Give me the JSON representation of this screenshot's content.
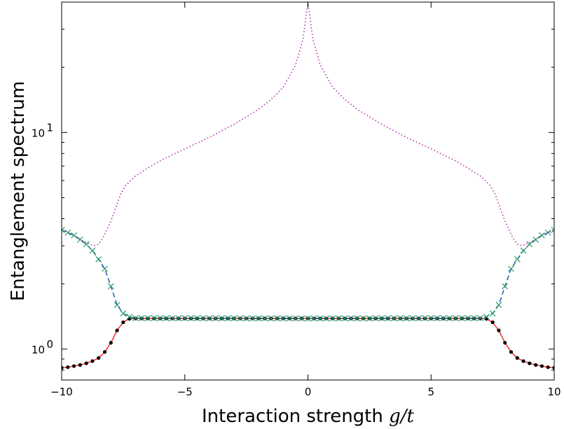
{
  "chart_data": {
    "type": "line",
    "title": "",
    "xlabel_text": "Interaction strength",
    "xlabel_var": "g/t",
    "ylabel": "Entanglement spectrum",
    "xlim": [
      -10,
      10
    ],
    "ylim": [
      0.72,
      40
    ],
    "yscale": "log",
    "grid": false,
    "legend": "none",
    "x_ticks": [
      -10,
      -5,
      0,
      5,
      10
    ],
    "x_tick_labels": [
      "−10",
      "−5",
      "0",
      "5",
      "10"
    ],
    "y_major_ticks": [
      1,
      10
    ],
    "y_major_labels": [
      {
        "base": "10",
        "exp": "0"
      },
      {
        "base": "10",
        "exp": "1"
      }
    ],
    "y_minor_ticks": [
      0.8,
      0.9,
      2,
      3,
      4,
      5,
      6,
      7,
      8,
      9,
      20,
      30
    ],
    "series": [
      {
        "style": "solid",
        "color": "#ff2a2a",
        "marker": "dot",
        "marker_color": "#000000",
        "x": [
          -10,
          -9.75,
          -9.5,
          -9.25,
          -9,
          -8.75,
          -8.5,
          -8.25,
          -8,
          -7.75,
          -7.5,
          -7.25,
          -7,
          0,
          7,
          7.25,
          7.5,
          7.75,
          8,
          8.25,
          8.5,
          8.75,
          9,
          9.25,
          9.5,
          9.75,
          10
        ],
        "y": [
          0.82,
          0.825,
          0.835,
          0.845,
          0.86,
          0.88,
          0.91,
          0.97,
          1.07,
          1.22,
          1.33,
          1.38,
          1.385,
          1.385,
          1.385,
          1.38,
          1.33,
          1.22,
          1.07,
          0.97,
          0.91,
          0.88,
          0.86,
          0.845,
          0.835,
          0.825,
          0.82
        ]
      },
      {
        "style": "dashed",
        "color": "#1f5fa8",
        "marker": "x",
        "marker_color": "#2a9a6a",
        "x": [
          -10,
          -9.75,
          -9.5,
          -9.25,
          -9,
          -8.75,
          -8.5,
          -8.25,
          -8,
          -7.75,
          -7.5,
          -7.25,
          -7,
          0,
          7,
          7.25,
          7.5,
          7.75,
          8,
          8.25,
          8.5,
          8.75,
          9,
          9.25,
          9.5,
          9.75,
          10
        ],
        "y": [
          3.55,
          3.45,
          3.35,
          3.2,
          3.05,
          2.85,
          2.6,
          2.35,
          1.95,
          1.6,
          1.46,
          1.41,
          1.39,
          1.385,
          1.39,
          1.41,
          1.46,
          1.6,
          1.95,
          2.35,
          2.6,
          2.85,
          3.05,
          3.2,
          3.35,
          3.45,
          3.55
        ]
      },
      {
        "style": "dotted",
        "color": "#b02fb0",
        "marker": "none",
        "x": [
          -10,
          -9.5,
          -9,
          -8.7,
          -8.5,
          -8.3,
          -8,
          -7.8,
          -7.6,
          -7.4,
          -7.2,
          -7,
          -6.5,
          -6,
          -5,
          -4,
          -3,
          -2,
          -1.5,
          -1,
          -0.5,
          -0.2,
          0,
          0.2,
          0.5,
          1,
          1.5,
          2,
          3,
          4,
          5,
          6,
          6.5,
          7,
          7.2,
          7.4,
          7.6,
          7.8,
          8,
          8.3,
          8.5,
          8.7,
          9,
          9.5,
          10
        ],
        "y": [
          3.55,
          3.35,
          3.1,
          3.0,
          3.05,
          3.3,
          3.9,
          4.5,
          5.2,
          5.7,
          6.0,
          6.3,
          6.85,
          7.4,
          8.4,
          9.5,
          10.9,
          12.8,
          14.2,
          16.2,
          20.5,
          27,
          40,
          27,
          20.5,
          16.2,
          14.2,
          12.8,
          10.9,
          9.5,
          8.4,
          7.4,
          6.85,
          6.3,
          6.0,
          5.7,
          5.2,
          4.5,
          3.9,
          3.3,
          3.05,
          3.0,
          3.1,
          3.35,
          3.55
        ]
      }
    ]
  }
}
